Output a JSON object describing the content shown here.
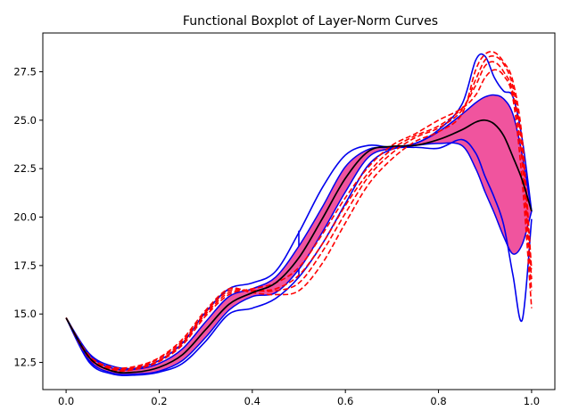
{
  "chart_data": {
    "type": "line",
    "subtype": "functional-boxplot",
    "title": "Functional Boxplot of Layer-Norm Curves",
    "xlabel": "",
    "ylabel": "",
    "xlim": [
      -0.05,
      1.05
    ],
    "ylim": [
      11.1,
      29.5
    ],
    "x_ticks": [
      0.0,
      0.2,
      0.4,
      0.6,
      0.8,
      1.0
    ],
    "x_tick_labels": [
      "0.0",
      "0.2",
      "0.4",
      "0.6",
      "0.8",
      "1.0"
    ],
    "y_ticks": [
      12.5,
      15.0,
      17.5,
      20.0,
      22.5,
      25.0,
      27.5
    ],
    "y_tick_labels": [
      "12.5",
      "15.0",
      "17.5",
      "20.0",
      "22.5",
      "25.0",
      "27.5"
    ],
    "grid": false,
    "legend": "none",
    "colors": {
      "band": "#f0549e",
      "envelope": "#0000ee",
      "median": "#000000",
      "outlier": "#ff0000"
    },
    "x": [
      0.0,
      0.05,
      0.1,
      0.15,
      0.2,
      0.25,
      0.3,
      0.35,
      0.4,
      0.45,
      0.5,
      0.55,
      0.6,
      0.65,
      0.7,
      0.75,
      0.8,
      0.85,
      0.88,
      0.9,
      0.92,
      0.94,
      0.96,
      0.98,
      1.0
    ],
    "central_band": {
      "upper": [
        14.8,
        12.9,
        12.2,
        12.15,
        12.45,
        13.2,
        14.6,
        15.9,
        16.3,
        16.9,
        18.5,
        20.5,
        22.6,
        23.5,
        23.6,
        23.8,
        24.4,
        25.3,
        25.9,
        26.2,
        26.3,
        26.1,
        25.3,
        23.2,
        20.3
      ],
      "lower": [
        14.8,
        12.6,
        11.95,
        11.9,
        12.05,
        12.6,
        13.8,
        15.2,
        15.9,
        16.1,
        17.3,
        19.2,
        21.3,
        23.1,
        23.55,
        23.7,
        23.8,
        23.7,
        22.5,
        21.3,
        20.2,
        19.0,
        18.1,
        18.6,
        20.3
      ]
    },
    "envelope": {
      "upper": [
        14.8,
        12.95,
        12.3,
        12.2,
        12.6,
        13.5,
        15.1,
        16.3,
        16.6,
        17.2,
        19.2,
        21.5,
        23.2,
        23.7,
        23.6,
        23.8,
        24.5,
        25.8,
        28.1,
        28.3,
        27.2,
        26.5,
        26.2,
        24.0,
        20.3
      ],
      "lower": [
        14.8,
        12.5,
        11.9,
        11.85,
        12.0,
        12.45,
        13.6,
        15.0,
        15.3,
        15.8,
        16.9,
        18.6,
        20.7,
        22.7,
        23.5,
        23.6,
        23.55,
        24.0,
        23.3,
        22.1,
        21.0,
        19.6,
        17.0,
        14.7,
        19.9
      ]
    },
    "series": [
      {
        "role": "median",
        "values": [
          14.8,
          12.75,
          12.05,
          12.0,
          12.25,
          12.9,
          14.2,
          15.5,
          16.1,
          16.6,
          17.9,
          19.9,
          22.0,
          23.4,
          23.65,
          23.7,
          24.0,
          24.5,
          24.9,
          25.0,
          24.8,
          24.2,
          23.1,
          21.9,
          20.3
        ]
      },
      {
        "role": "outlier",
        "values": [
          14.8,
          12.7,
          12.1,
          12.15,
          12.55,
          13.4,
          14.9,
          16.0,
          16.3,
          16.6,
          17.4,
          19.1,
          21.0,
          22.6,
          23.7,
          24.3,
          25.0,
          25.6,
          26.3,
          27.2,
          27.6,
          27.3,
          26.1,
          21.8,
          15.3
        ]
      },
      {
        "role": "outlier",
        "values": [
          14.8,
          12.75,
          12.15,
          12.2,
          12.6,
          13.5,
          15.0,
          16.1,
          16.2,
          16.3,
          17.0,
          18.6,
          20.6,
          22.3,
          23.5,
          24.2,
          24.7,
          25.6,
          26.8,
          27.8,
          28.0,
          27.5,
          26.4,
          22.8,
          16.2
        ]
      },
      {
        "role": "outlier",
        "values": [
          14.8,
          12.8,
          12.2,
          12.25,
          12.7,
          13.6,
          15.1,
          16.2,
          16.2,
          16.2,
          16.6,
          18.2,
          20.2,
          22.1,
          23.3,
          24.1,
          24.6,
          25.5,
          27.1,
          28.1,
          28.3,
          27.9,
          26.7,
          23.5,
          16.8
        ]
      },
      {
        "role": "outlier",
        "values": [
          14.8,
          12.85,
          12.25,
          12.3,
          12.75,
          13.7,
          15.2,
          16.3,
          16.1,
          16.0,
          16.2,
          17.6,
          19.7,
          21.7,
          23.0,
          23.9,
          24.4,
          25.3,
          27.6,
          28.4,
          28.5,
          28.0,
          27.0,
          24.0,
          17.3
        ]
      }
    ],
    "whisker_segments": [
      {
        "x": 0.5,
        "y_from": 18.5,
        "y_to": 19.3
      },
      {
        "x": 0.5,
        "y_from": 17.3,
        "y_to": 16.9
      }
    ]
  }
}
